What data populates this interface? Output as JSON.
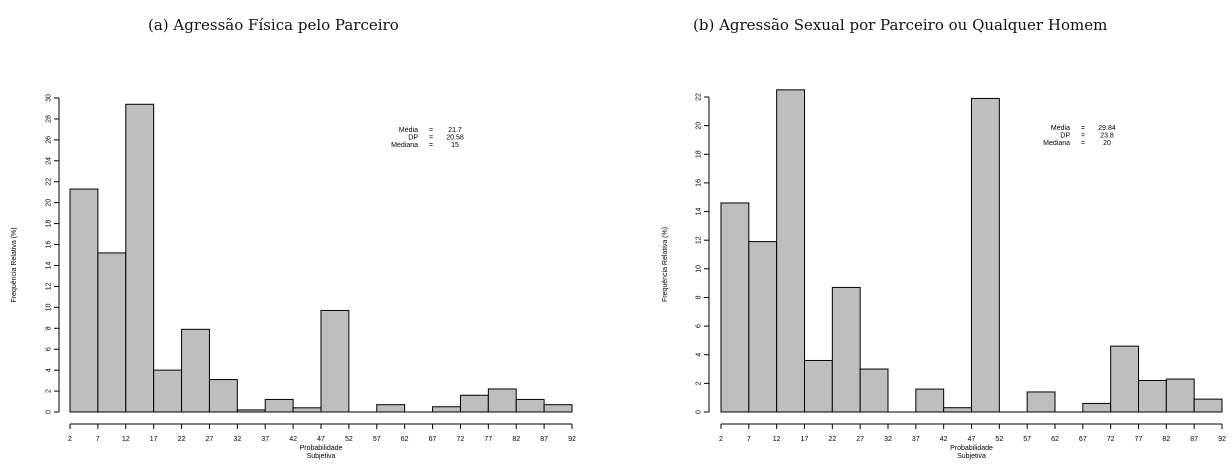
{
  "panels": [
    {
      "caption": "(a) Agressão Física pelo Parceiro",
      "chart_data": {
        "type": "bar",
        "title": "",
        "xlabel": "Probabilidade Subjetiva",
        "xlabel_lines": [
          "Probabilidade",
          "Subjetiva"
        ],
        "ylabel": "Frequência Relativa (%)",
        "ylim": [
          0,
          30
        ],
        "ytick_step": 2,
        "bin_edges": [
          2,
          7,
          12,
          17,
          22,
          27,
          32,
          37,
          42,
          47,
          52,
          57,
          62,
          67,
          72,
          77,
          82,
          87,
          92
        ],
        "xtick_labels": [
          "2",
          "7",
          "12",
          "17",
          "22",
          "27",
          "32",
          "37",
          "42",
          "47",
          "52",
          "57",
          "62",
          "67",
          "72",
          "77",
          "82",
          "87",
          "92"
        ],
        "values": [
          21.3,
          15.2,
          29.4,
          4.0,
          7.9,
          3.1,
          0.2,
          1.2,
          0.4,
          9.7,
          0.0,
          0.7,
          0.0,
          0.5,
          1.6,
          2.2,
          1.2,
          0.7
        ],
        "bar_color": "#bebebe",
        "stats": [
          {
            "label": "Média",
            "eq": "=",
            "value": "21.7"
          },
          {
            "label": "DP",
            "eq": "=",
            "value": "20.58"
          },
          {
            "label": "Mediana",
            "eq": "=",
            "value": "15"
          }
        ]
      }
    },
    {
      "caption": "(b) Agressão Sexual por Parceiro ou Qualquer Homem",
      "chart_data": {
        "type": "bar",
        "title": "",
        "xlabel": "Probabilidade Subjetiva",
        "xlabel_lines": [
          "Probabilidade",
          "Subjetiva"
        ],
        "ylabel": "Frequência Relativa (%)",
        "ylim": [
          0,
          23
        ],
        "ytick_step": 2,
        "bin_edges": [
          2,
          7,
          12,
          17,
          22,
          27,
          32,
          37,
          42,
          47,
          52,
          57,
          62,
          67,
          72,
          77,
          82,
          87,
          92
        ],
        "xtick_labels": [
          "2",
          "7",
          "12",
          "17",
          "22",
          "27",
          "32",
          "37",
          "42",
          "47",
          "52",
          "57",
          "62",
          "67",
          "72",
          "77",
          "82",
          "87",
          "92"
        ],
        "values": [
          14.6,
          11.9,
          22.5,
          3.6,
          8.7,
          3.0,
          0.0,
          1.6,
          0.3,
          21.9,
          0.0,
          1.4,
          0.0,
          0.6,
          4.6,
          2.2,
          2.3,
          0.9
        ],
        "bar_color": "#bebebe",
        "stats": [
          {
            "label": "Média",
            "eq": "=",
            "value": "29.84"
          },
          {
            "label": "DP",
            "eq": "=",
            "value": "23.8"
          },
          {
            "label": "Mediana",
            "eq": "=",
            "value": "20"
          }
        ]
      }
    }
  ]
}
